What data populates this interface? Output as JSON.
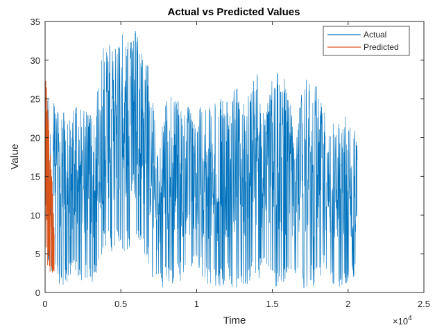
{
  "chart_data": {
    "type": "line",
    "title": "Actual vs Predicted Values",
    "xlabel": "Time",
    "ylabel": "Value",
    "x_exponent_label": "×10",
    "x_exponent_power": "4",
    "xlim": [
      0,
      25000
    ],
    "ylim": [
      0,
      35
    ],
    "xticks": [
      0,
      5000,
      10000,
      15000,
      20000,
      25000
    ],
    "xtick_labels": [
      "0",
      "0.5",
      "1",
      "1.5",
      "2",
      "2.5"
    ],
    "yticks": [
      0,
      5,
      10,
      15,
      20,
      25,
      30,
      35
    ],
    "ytick_labels": [
      "0",
      "5",
      "10",
      "15",
      "20",
      "25",
      "30",
      "35"
    ],
    "grid": false,
    "legend_position": "top-right",
    "series": [
      {
        "name": "Actual",
        "color": "#0072BD",
        "x_start": 0,
        "x_end": 20600,
        "envelope": {
          "x": [
            0,
            300,
            600,
            700,
            1000,
            1500,
            2000,
            2500,
            3000,
            3300,
            3500,
            3700,
            4000,
            4500,
            5000,
            5500,
            6000,
            6500,
            7000,
            7200,
            7300,
            7600,
            8000,
            8500,
            9000,
            9500,
            9800,
            10000,
            10200,
            10500,
            11000,
            11500,
            12000,
            12500,
            13000,
            13500,
            14000,
            14300,
            14500,
            14800,
            15000,
            15500,
            16000,
            16300,
            16500,
            16800,
            17000,
            17500,
            18000,
            18300,
            18500,
            18800,
            19000,
            19500,
            20000,
            20300,
            20600
          ],
          "low": [
            3,
            3,
            2.5,
            1.5,
            1,
            1,
            2,
            1.5,
            1,
            1.5,
            3,
            4.5,
            5,
            5,
            5.5,
            5,
            5,
            5,
            2,
            0.5,
            0.5,
            0.5,
            1,
            0.5,
            1.5,
            1.5,
            3,
            2.5,
            3,
            0.5,
            0.5,
            0.5,
            1,
            0.5,
            1,
            1,
            1,
            2.5,
            4,
            1.5,
            0.5,
            0.5,
            0.5,
            2,
            2.5,
            1,
            0.5,
            0.5,
            0.5,
            2,
            3,
            1,
            0.5,
            0.5,
            0.5,
            1,
            2
          ],
          "high": [
            26,
            26,
            26,
            24,
            24,
            23,
            24,
            24,
            23,
            23,
            27,
            31,
            33,
            32,
            34,
            33,
            34,
            30,
            29,
            25,
            17,
            21,
            25,
            26,
            24,
            24,
            22,
            21,
            24,
            26,
            24,
            25,
            25,
            27,
            25,
            26,
            29,
            24,
            23,
            26,
            28,
            29,
            27,
            23,
            17,
            26,
            28,
            27,
            27,
            25,
            24,
            22,
            22,
            23,
            23,
            22,
            21
          ]
        }
      },
      {
        "name": "Predicted",
        "color": "#D95319",
        "x_start": 0,
        "x_end": 600,
        "envelope": {
          "x": [
            0,
            50,
            100,
            200,
            300,
            400,
            500,
            600
          ],
          "low": [
            4,
            3,
            3,
            3,
            2.5,
            2.5,
            2.5,
            2.5
          ],
          "high": [
            29,
            28,
            28,
            26,
            21,
            17,
            13,
            8
          ]
        }
      }
    ]
  }
}
